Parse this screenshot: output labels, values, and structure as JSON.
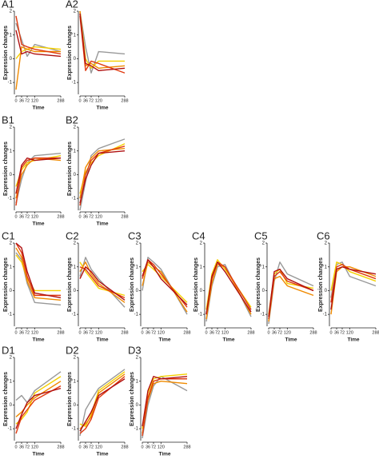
{
  "chart_data": [
    {
      "type": "line",
      "title": "A1",
      "xlabel": "Time",
      "ylabel": "Expression changes",
      "x": [
        0,
        36,
        72,
        120,
        288
      ],
      "xlim": [
        0,
        288
      ],
      "xticks": [
        0,
        36,
        72,
        120,
        288
      ],
      "ylim": [
        -1.5,
        2
      ],
      "yticks": [
        -1,
        0,
        1,
        2
      ],
      "series": [
        {
          "color": "#999999",
          "values": [
            1.5,
            0.8,
            0.1,
            0.6,
            0.3
          ]
        },
        {
          "color": "#f5d000",
          "values": [
            0.0,
            0.3,
            0.4,
            0.5,
            0.4
          ]
        },
        {
          "color": "#f08a00",
          "values": [
            -1.3,
            0.5,
            0.4,
            0.3,
            0.3
          ]
        },
        {
          "color": "#e03a10",
          "values": [
            1.8,
            0.6,
            0.5,
            0.4,
            0.2
          ]
        },
        {
          "color": "#b01010",
          "values": [
            1.2,
            0.2,
            0.3,
            0.2,
            0.1
          ]
        }
      ]
    },
    {
      "type": "line",
      "title": "A2",
      "xlabel": "Time",
      "ylabel": "Expression changes",
      "x": [
        0,
        36,
        72,
        120,
        288
      ],
      "xlim": [
        0,
        288
      ],
      "xticks": [
        0,
        36,
        72,
        120,
        288
      ],
      "ylim": [
        -1.5,
        2
      ],
      "yticks": [
        -1,
        0,
        1,
        2
      ],
      "series": [
        {
          "color": "#999999",
          "values": [
            2,
            0.5,
            -0.6,
            0.3,
            0.2
          ]
        },
        {
          "color": "#f5d000",
          "values": [
            2,
            0,
            -0.4,
            -0.1,
            -0.1
          ]
        },
        {
          "color": "#f08a00",
          "values": [
            2,
            -0.3,
            -0.2,
            -0.4,
            -0.3
          ]
        },
        {
          "color": "#e03a10",
          "values": [
            1.8,
            -0.5,
            -0.1,
            -0.2,
            -0.6
          ]
        },
        {
          "color": "#b01010",
          "values": [
            1.9,
            -0.2,
            -0.3,
            -0.5,
            -0.4
          ]
        }
      ]
    },
    {
      "type": "line",
      "title": "B1",
      "xlabel": "Time",
      "ylabel": "Expression changes",
      "x": [
        0,
        36,
        72,
        120,
        288
      ],
      "xlim": [
        0,
        288
      ],
      "xticks": [
        0,
        36,
        72,
        120,
        288
      ],
      "ylim": [
        -1.5,
        2
      ],
      "yticks": [
        -1,
        0,
        1,
        2
      ],
      "series": [
        {
          "color": "#999999",
          "values": [
            -1.2,
            -0.2,
            0.5,
            0.8,
            0.9
          ]
        },
        {
          "color": "#f5d000",
          "values": [
            -0.5,
            0.2,
            0.5,
            0.6,
            0.8
          ]
        },
        {
          "color": "#f08a00",
          "values": [
            -1,
            0,
            0.4,
            0.7,
            0.6
          ]
        },
        {
          "color": "#e03a10",
          "values": [
            -1.3,
            0.3,
            0.6,
            0.7,
            0.7
          ]
        },
        {
          "color": "#b01010",
          "values": [
            -0.8,
            0.4,
            0.7,
            0.6,
            0.7
          ]
        }
      ]
    },
    {
      "type": "line",
      "title": "B2",
      "xlabel": "Time",
      "ylabel": "Expression changes",
      "x": [
        0,
        36,
        72,
        120,
        288
      ],
      "xlim": [
        0,
        288
      ],
      "xticks": [
        0,
        36,
        72,
        120,
        288
      ],
      "ylim": [
        -1.5,
        2
      ],
      "yticks": [
        -1,
        0,
        1,
        2
      ],
      "series": [
        {
          "color": "#999999",
          "values": [
            -1.5,
            -0.3,
            0.8,
            1.1,
            1.5
          ]
        },
        {
          "color": "#f5d000",
          "values": [
            -0.8,
            0.1,
            0.5,
            0.8,
            1.3
          ]
        },
        {
          "color": "#f08a00",
          "values": [
            -1,
            0.3,
            0.7,
            1,
            1.1
          ]
        },
        {
          "color": "#e03a10",
          "values": [
            -1.3,
            0,
            0.6,
            0.9,
            1.2
          ]
        },
        {
          "color": "#b01010",
          "values": [
            -1.2,
            -0.2,
            0.4,
            0.9,
            1.0
          ]
        }
      ]
    },
    {
      "type": "line",
      "title": "C1",
      "xlabel": "Time",
      "ylabel": "Expression changes",
      "x": [
        0,
        36,
        72,
        120,
        288
      ],
      "xlim": [
        0,
        288
      ],
      "xticks": [
        0,
        36,
        72,
        120,
        288
      ],
      "ylim": [
        -1.5,
        2
      ],
      "yticks": [
        -1,
        0,
        1,
        2
      ],
      "series": [
        {
          "color": "#999999",
          "values": [
            1.6,
            1.3,
            0.3,
            -0.5,
            -0.6
          ]
        },
        {
          "color": "#f5d000",
          "values": [
            1.5,
            1.2,
            0.5,
            0,
            0
          ]
        },
        {
          "color": "#f08a00",
          "values": [
            1.8,
            1.4,
            0.4,
            -0.3,
            -0.4
          ]
        },
        {
          "color": "#e03a10",
          "values": [
            2,
            1.6,
            0.6,
            -0.2,
            -0.2
          ]
        },
        {
          "color": "#b01010",
          "values": [
            2,
            1.8,
            0.8,
            -0.1,
            -0.3
          ]
        }
      ]
    },
    {
      "type": "line",
      "title": "C2",
      "xlabel": "Time",
      "ylabel": "Expression changes",
      "x": [
        0,
        36,
        72,
        120,
        288
      ],
      "xlim": [
        0,
        288
      ],
      "xticks": [
        0,
        36,
        72,
        120,
        288
      ],
      "ylim": [
        -1.5,
        2
      ],
      "yticks": [
        -1,
        0,
        1,
        2
      ],
      "series": [
        {
          "color": "#999999",
          "values": [
            0.6,
            1.4,
            0.9,
            0.5,
            -0.7
          ]
        },
        {
          "color": "#f5d000",
          "values": [
            1.2,
            0.8,
            0.5,
            0.1,
            -0.2
          ]
        },
        {
          "color": "#f08a00",
          "values": [
            0.8,
            1.2,
            0.7,
            0.3,
            -0.5
          ]
        },
        {
          "color": "#e03a10",
          "values": [
            1,
            0.9,
            0.6,
            0.2,
            -0.3
          ]
        },
        {
          "color": "#b01010",
          "values": [
            0.5,
            1,
            0.8,
            0.4,
            -0.4
          ]
        }
      ]
    },
    {
      "type": "line",
      "title": "C3",
      "xlabel": "Time",
      "ylabel": "Expression changes",
      "x": [
        0,
        36,
        72,
        120,
        288
      ],
      "xlim": [
        0,
        288
      ],
      "xticks": [
        0,
        36,
        72,
        120,
        288
      ],
      "ylim": [
        -1.5,
        2
      ],
      "yticks": [
        -1,
        0,
        1,
        2
      ],
      "series": [
        {
          "color": "#999999",
          "values": [
            0,
            1.4,
            1.2,
            0.9,
            -1
          ]
        },
        {
          "color": "#f5d000",
          "values": [
            0.8,
            1.1,
            0.9,
            0.6,
            -0.5
          ]
        },
        {
          "color": "#f08a00",
          "values": [
            0.2,
            1.2,
            1.0,
            0.8,
            -0.9
          ]
        },
        {
          "color": "#e03a10",
          "values": [
            0.5,
            1.3,
            1.1,
            0.7,
            -0.7
          ]
        },
        {
          "color": "#b01010",
          "values": [
            0.6,
            1.3,
            1.0,
            0.5,
            -0.6
          ]
        }
      ]
    },
    {
      "type": "line",
      "title": "C4",
      "xlabel": "Time",
      "ylabel": "Expression changes",
      "x": [
        0,
        36,
        72,
        120,
        288
      ],
      "xlim": [
        0,
        288
      ],
      "xticks": [
        0,
        36,
        72,
        120,
        288
      ],
      "ylim": [
        -1.5,
        2
      ],
      "yticks": [
        -1,
        0,
        1,
        2
      ],
      "series": [
        {
          "color": "#999999",
          "values": [
            -1.3,
            0.2,
            1.0,
            1.1,
            -1.1
          ]
        },
        {
          "color": "#f5d000",
          "values": [
            -0.8,
            0.7,
            1.3,
            0.9,
            -0.7
          ]
        },
        {
          "color": "#f08a00",
          "values": [
            -1.2,
            0.3,
            1.1,
            1.0,
            -1.0
          ]
        },
        {
          "color": "#e03a10",
          "values": [
            -1,
            0.5,
            1.2,
            1.0,
            -0.8
          ]
        },
        {
          "color": "#b01010",
          "values": [
            -1,
            0.6,
            1.2,
            0.8,
            -0.9
          ]
        }
      ]
    },
    {
      "type": "line",
      "title": "C5",
      "xlabel": "Time",
      "ylabel": "Expression changes",
      "x": [
        0,
        36,
        72,
        120,
        288
      ],
      "xlim": [
        0,
        288
      ],
      "xticks": [
        0,
        36,
        72,
        120,
        288
      ],
      "ylim": [
        -1.5,
        2
      ],
      "yticks": [
        -1,
        0,
        1,
        2
      ],
      "series": [
        {
          "color": "#999999",
          "values": [
            -1.4,
            0.4,
            1.2,
            0.7,
            0.2
          ]
        },
        {
          "color": "#f5d000",
          "values": [
            -1,
            0.7,
            0.9,
            0.3,
            0.1
          ]
        },
        {
          "color": "#f08a00",
          "values": [
            -1.3,
            0.5,
            0.6,
            0.2,
            -0.2
          ]
        },
        {
          "color": "#e03a10",
          "values": [
            -1.2,
            0.6,
            0.8,
            0.4,
            0
          ]
        },
        {
          "color": "#b01010",
          "values": [
            -1.1,
            0.8,
            0.9,
            0.5,
            0
          ]
        }
      ]
    },
    {
      "type": "line",
      "title": "C6",
      "xlabel": "Time",
      "ylabel": "Expression changes",
      "x": [
        0,
        36,
        72,
        120,
        288
      ],
      "xlim": [
        0,
        288
      ],
      "xticks": [
        0,
        36,
        72,
        120,
        288
      ],
      "ylim": [
        -1.5,
        2
      ],
      "yticks": [
        -1,
        0,
        1,
        2
      ],
      "series": [
        {
          "color": "#999999",
          "values": [
            -0.3,
            1.1,
            1.2,
            0.6,
            0.2
          ]
        },
        {
          "color": "#f5d000",
          "values": [
            0,
            1.2,
            1.1,
            0.8,
            0.4
          ]
        },
        {
          "color": "#f08a00",
          "values": [
            -1,
            0.8,
            1.0,
            1.0,
            0.6
          ]
        },
        {
          "color": "#e03a10",
          "values": [
            -0.5,
            1,
            1.1,
            0.9,
            0.5
          ]
        },
        {
          "color": "#b01010",
          "values": [
            -0.8,
            0.9,
            1,
            0.9,
            0.7
          ]
        }
      ]
    },
    {
      "type": "line",
      "title": "D1",
      "xlabel": "Time",
      "ylabel": "Expression changes",
      "x": [
        0,
        36,
        72,
        120,
        288
      ],
      "xlim": [
        0,
        288
      ],
      "xticks": [
        0,
        36,
        72,
        120,
        288
      ],
      "ylim": [
        -1.5,
        2
      ],
      "yticks": [
        -1,
        0,
        1,
        2
      ],
      "series": [
        {
          "color": "#999999",
          "values": [
            0.2,
            0.4,
            0.1,
            0.6,
            1.4
          ]
        },
        {
          "color": "#f5d000",
          "values": [
            -0.8,
            -0.6,
            -0.3,
            0.5,
            1.2
          ]
        },
        {
          "color": "#f08a00",
          "values": [
            -0.5,
            -0.3,
            0,
            0.3,
            1.0
          ]
        },
        {
          "color": "#e03a10",
          "values": [
            -1.2,
            -0.5,
            -0.2,
            0.2,
            0.8
          ]
        },
        {
          "color": "#b01010",
          "values": [
            -1,
            -0.4,
            0.1,
            0.4,
            0.7
          ]
        }
      ]
    },
    {
      "type": "line",
      "title": "D2",
      "xlabel": "Time",
      "ylabel": "Expression changes",
      "x": [
        0,
        36,
        72,
        120,
        288
      ],
      "xlim": [
        0,
        288
      ],
      "xticks": [
        0,
        36,
        72,
        120,
        288
      ],
      "ylim": [
        -1.5,
        2
      ],
      "yticks": [
        -1,
        0,
        1,
        2
      ],
      "series": [
        {
          "color": "#999999",
          "values": [
            -1.3,
            -0.2,
            0.2,
            0.7,
            1.5
          ]
        },
        {
          "color": "#f5d000",
          "values": [
            -0.8,
            -0.9,
            -0.4,
            0.6,
            1.4
          ]
        },
        {
          "color": "#f08a00",
          "values": [
            -1,
            -0.8,
            -0.5,
            0.5,
            1.3
          ]
        },
        {
          "color": "#e03a10",
          "values": [
            -1.2,
            -1,
            -0.6,
            0.3,
            1.2
          ]
        },
        {
          "color": "#b01010",
          "values": [
            -1.1,
            -0.7,
            -0.3,
            0.4,
            1.1
          ]
        }
      ]
    },
    {
      "type": "line",
      "title": "D3",
      "xlabel": "Time",
      "ylabel": "Expression changes",
      "x": [
        0,
        36,
        72,
        120,
        288
      ],
      "xlim": [
        0,
        288
      ],
      "xticks": [
        0,
        36,
        72,
        120,
        288
      ],
      "ylim": [
        -1.5,
        2
      ],
      "yticks": [
        -1,
        0,
        1,
        2
      ],
      "series": [
        {
          "color": "#999999",
          "values": [
            -1.4,
            0,
            0.8,
            1.2,
            0.6
          ]
        },
        {
          "color": "#f5d000",
          "values": [
            -1,
            0.5,
            1.1,
            1.2,
            1.3
          ]
        },
        {
          "color": "#f08a00",
          "values": [
            -1.2,
            0.2,
            0.9,
            1.0,
            0.9
          ]
        },
        {
          "color": "#e03a10",
          "values": [
            -1.3,
            0.3,
            1.0,
            1.1,
            1.1
          ]
        },
        {
          "color": "#b01010",
          "values": [
            -0.9,
            0.6,
            1.2,
            1.1,
            1.2
          ]
        }
      ]
    }
  ]
}
